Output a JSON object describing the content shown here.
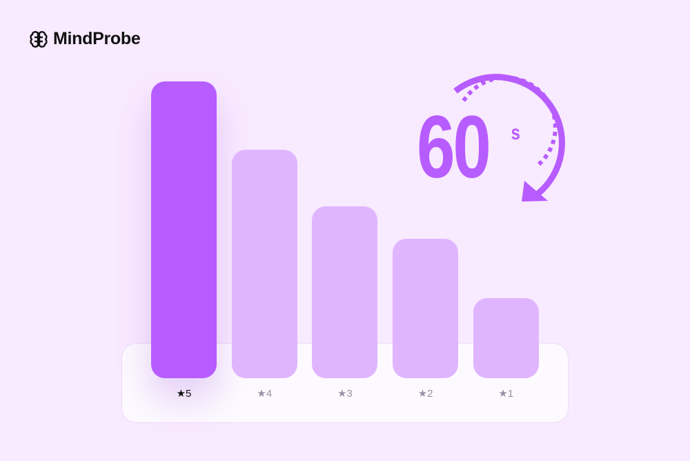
{
  "brand": {
    "name": "MindProbe",
    "icon": "brain-icon"
  },
  "timer": {
    "value": "60",
    "unit": "s",
    "icon": "countdown-arrow-icon"
  },
  "colors": {
    "background": "#f8eaff",
    "highlight": "#b75cff",
    "bar": "#e0b5ff"
  },
  "chart_data": {
    "type": "bar",
    "categories": [
      "★5",
      "★4",
      "★3",
      "★2",
      "★1"
    ],
    "values": [
      100,
      77,
      58,
      47,
      27
    ],
    "highlighted": "★5",
    "title": "",
    "xlabel": "",
    "ylabel": "",
    "grid": false
  }
}
